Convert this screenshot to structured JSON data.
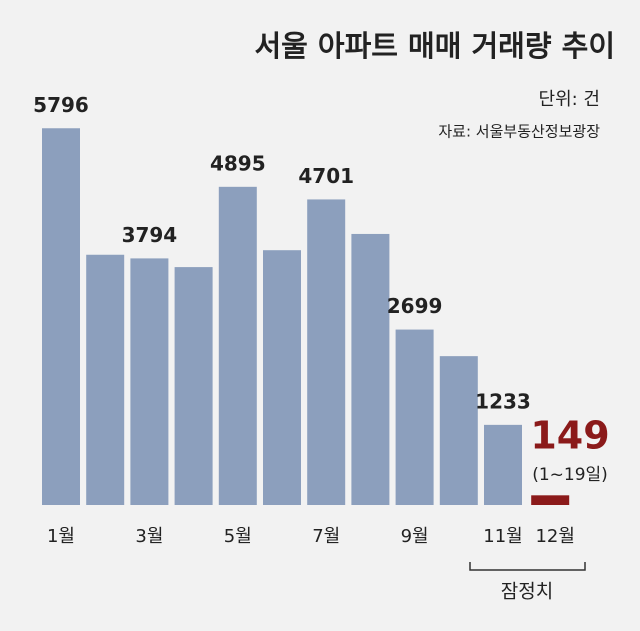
{
  "chart_data": {
    "type": "bar",
    "title": "서울 아파트 매매 거래량 추이",
    "unit": "단위: 건",
    "source": "자료: 서울부동산정보광장",
    "categories": [
      "1월",
      null,
      "3월",
      null,
      "5월",
      null,
      "7월",
      null,
      "9월",
      null,
      "11월",
      "12월"
    ],
    "values": [
      5796,
      3850,
      3794,
      3660,
      4895,
      3920,
      4701,
      4170,
      2699,
      2290,
      1233,
      149
    ],
    "value_labels": [
      "5796",
      null,
      "3794",
      null,
      "4895",
      null,
      "4701",
      null,
      "2699",
      null,
      "1233",
      "149"
    ],
    "colors": [
      "#8c9fbd",
      "#8c9fbd",
      "#8c9fbd",
      "#8c9fbd",
      "#8c9fbd",
      "#8c9fbd",
      "#8c9fbd",
      "#8c9fbd",
      "#8c9fbd",
      "#8c9fbd",
      "#8c9fbd",
      "#8b1a1a"
    ],
    "annotations": [
      "(1~19일)",
      "잠정치"
    ],
    "ylim": [
      0,
      6000
    ]
  }
}
